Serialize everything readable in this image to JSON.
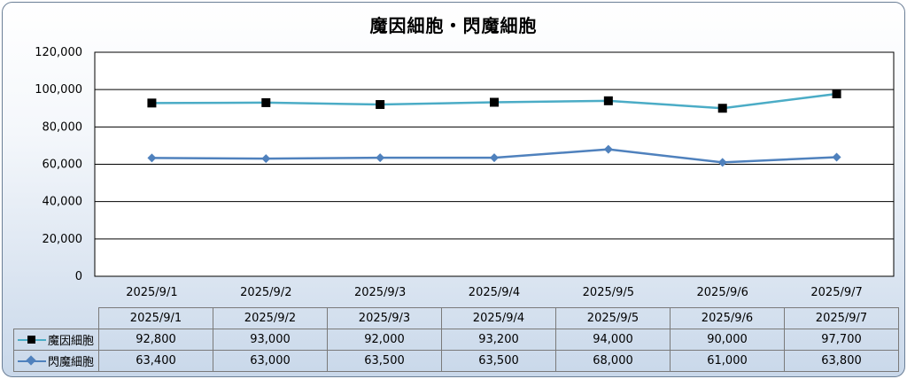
{
  "chart_data": {
    "type": "line",
    "title": "魔因細胞・閃魔細胞",
    "categories": [
      "2025/9/1",
      "2025/9/2",
      "2025/9/3",
      "2025/9/4",
      "2025/9/5",
      "2025/9/6",
      "2025/9/7"
    ],
    "y_ticks": [
      "0",
      "20,000",
      "40,000",
      "60,000",
      "80,000",
      "100,000",
      "120,000"
    ],
    "ylim": [
      0,
      120000
    ],
    "grid": true,
    "legend": "data-table",
    "series": [
      {
        "name": "魔因細胞",
        "values": [
          92800,
          93000,
          92000,
          93200,
          94000,
          90000,
          97700
        ],
        "labels": [
          "92,800",
          "93,000",
          "92,000",
          "93,200",
          "94,000",
          "90,000",
          "97,700"
        ],
        "color": "#4bacc6",
        "marker": "square"
      },
      {
        "name": "閃魔細胞",
        "values": [
          63400,
          63000,
          63500,
          63500,
          68000,
          61000,
          63800
        ],
        "labels": [
          "63,400",
          "63,000",
          "63,500",
          "63,500",
          "68,000",
          "61,000",
          "63,800"
        ],
        "color": "#4f81bd",
        "marker": "diamond"
      }
    ]
  }
}
